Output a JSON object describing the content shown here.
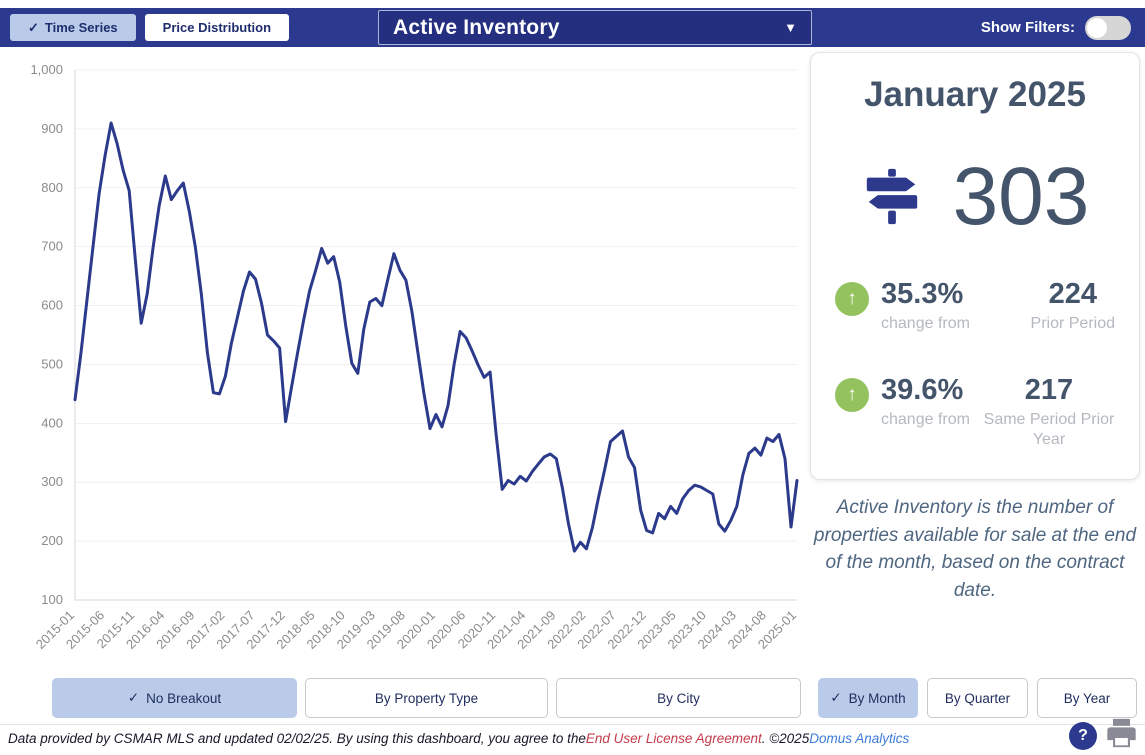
{
  "header": {
    "tabs": [
      {
        "label": "Time Series",
        "selected": true
      },
      {
        "label": "Price Distribution",
        "selected": false
      }
    ],
    "metric_dropdown": "Active Inventory",
    "show_filters_label": "Show Filters:",
    "show_filters_on": false
  },
  "summary_card": {
    "period_title": "January 2025",
    "main_value": "303",
    "stats": [
      {
        "direction": "up",
        "pct": "35.3%",
        "change_label": "change from",
        "value": "224",
        "value_label": "Prior Period"
      },
      {
        "direction": "up",
        "pct": "39.6%",
        "change_label": "change from",
        "value": "217",
        "value_label": "Same Period Prior Year"
      }
    ],
    "description": "Active Inventory is the number of properties available for sale at the end of the month, based on the contract date."
  },
  "breakout_buttons": [
    {
      "label": "No Breakout",
      "selected": true
    },
    {
      "label": "By Property Type",
      "selected": false
    },
    {
      "label": "By City",
      "selected": false
    }
  ],
  "period_buttons": [
    {
      "label": "By Month",
      "selected": true
    },
    {
      "label": "By Quarter",
      "selected": false
    },
    {
      "label": "By Year",
      "selected": false
    }
  ],
  "footer": {
    "disclaimer_prefix": "Data provided by CSMAR MLS and updated 02/02/25.  By using this dashboard, you agree to the ",
    "eula_link": "End User License Agreement",
    "disclaimer_mid": ".  ©2025 ",
    "brand_link": "Domus Analytics"
  },
  "icons": {
    "check": "✓",
    "caret_down": "▼",
    "arrow_up": "↑",
    "help": "?"
  },
  "colors": {
    "navy": "#2b3a8f",
    "selected_chip": "#b9cbe9",
    "slate_text": "#44546a",
    "green_up": "#94c25e",
    "line": "#2c3a8c"
  },
  "chart_data": {
    "type": "line",
    "title": "Active Inventory monthly time series",
    "x_monthly_range": [
      "2015-01",
      "2025-01"
    ],
    "x_label_every": 5,
    "x_tick_labels": [
      "2015-01",
      "2015-06",
      "2015-11",
      "2016-04",
      "2016-09",
      "2017-02",
      "2017-07",
      "2017-12",
      "2018-05",
      "2018-10",
      "2019-03",
      "2019-08",
      "2020-01",
      "2020-06",
      "2020-11",
      "2021-04",
      "2021-09",
      "2022-02",
      "2022-07",
      "2022-12",
      "2023-05",
      "2023-10",
      "2024-03",
      "2024-08",
      "2025-01"
    ],
    "ylim": [
      100,
      1000
    ],
    "y_tick_step": 100,
    "y_tick_labels": [
      "100",
      "200",
      "300",
      "400",
      "500",
      "600",
      "700",
      "800",
      "900",
      "1,000"
    ],
    "grid": true,
    "legend": "none",
    "line_color": "#2c3a8c",
    "series": [
      {
        "name": "Active Inventory",
        "values": [
          440,
          520,
          610,
          700,
          790,
          855,
          910,
          875,
          830,
          795,
          680,
          570,
          620,
          700,
          770,
          820,
          780,
          795,
          808,
          760,
          700,
          620,
          520,
          452,
          450,
          480,
          536,
          580,
          625,
          657,
          645,
          604,
          550,
          540,
          528,
          403,
          462,
          520,
          575,
          625,
          660,
          697,
          672,
          683,
          640,
          565,
          502,
          485,
          560,
          606,
          612,
          600,
          645,
          688,
          660,
          643,
          590,
          520,
          450,
          391,
          415,
          394,
          430,
          500,
          556,
          545,
          523,
          499,
          478,
          487,
          380,
          288,
          303,
          297,
          310,
          302,
          318,
          331,
          343,
          348,
          340,
          290,
          230,
          183,
          198,
          187,
          223,
          274,
          320,
          369,
          378,
          387,
          343,
          325,
          253,
          218,
          214,
          247,
          238,
          259,
          247,
          272,
          286,
          295,
          292,
          286,
          280,
          229,
          217,
          235,
          259,
          313,
          349,
          358,
          346,
          375,
          369,
          381,
          340,
          224,
          303
        ]
      }
    ]
  }
}
